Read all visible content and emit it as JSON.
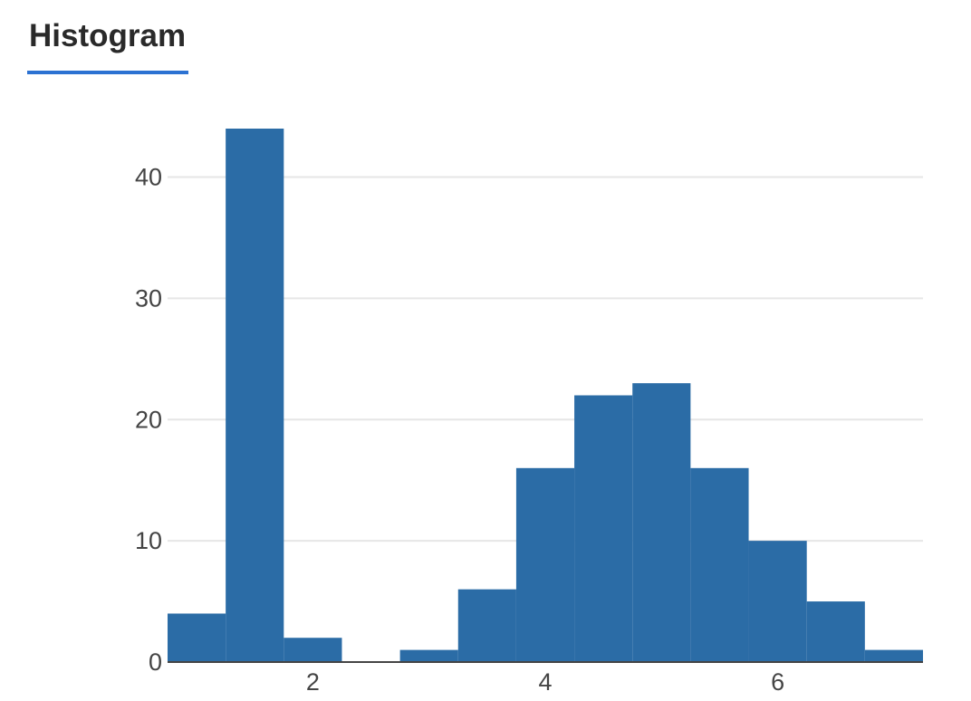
{
  "tabs": [
    {
      "label": "Histogram",
      "active": true
    }
  ],
  "colors": {
    "bar": "#2b6ca6",
    "grid": "#e6e6e6",
    "axis": "#444444",
    "tab_underline": "#2c72d2"
  },
  "chart_data": {
    "type": "bar",
    "title": "",
    "xlabel": "",
    "ylabel": "",
    "bin_edges": [
      0.75,
      1.25,
      1.75,
      2.25,
      2.75,
      3.25,
      3.75,
      4.25,
      4.75,
      5.25,
      5.75,
      6.25,
      6.75,
      7.25
    ],
    "values": [
      4,
      44,
      2,
      0,
      1,
      6,
      16,
      22,
      23,
      16,
      10,
      5,
      1
    ],
    "xlim": [
      0.75,
      7.25
    ],
    "ylim": [
      0,
      44
    ],
    "x_ticks": [
      2,
      4,
      6
    ],
    "y_ticks": [
      0,
      10,
      20,
      30,
      40
    ],
    "grid": true,
    "legend": false
  }
}
